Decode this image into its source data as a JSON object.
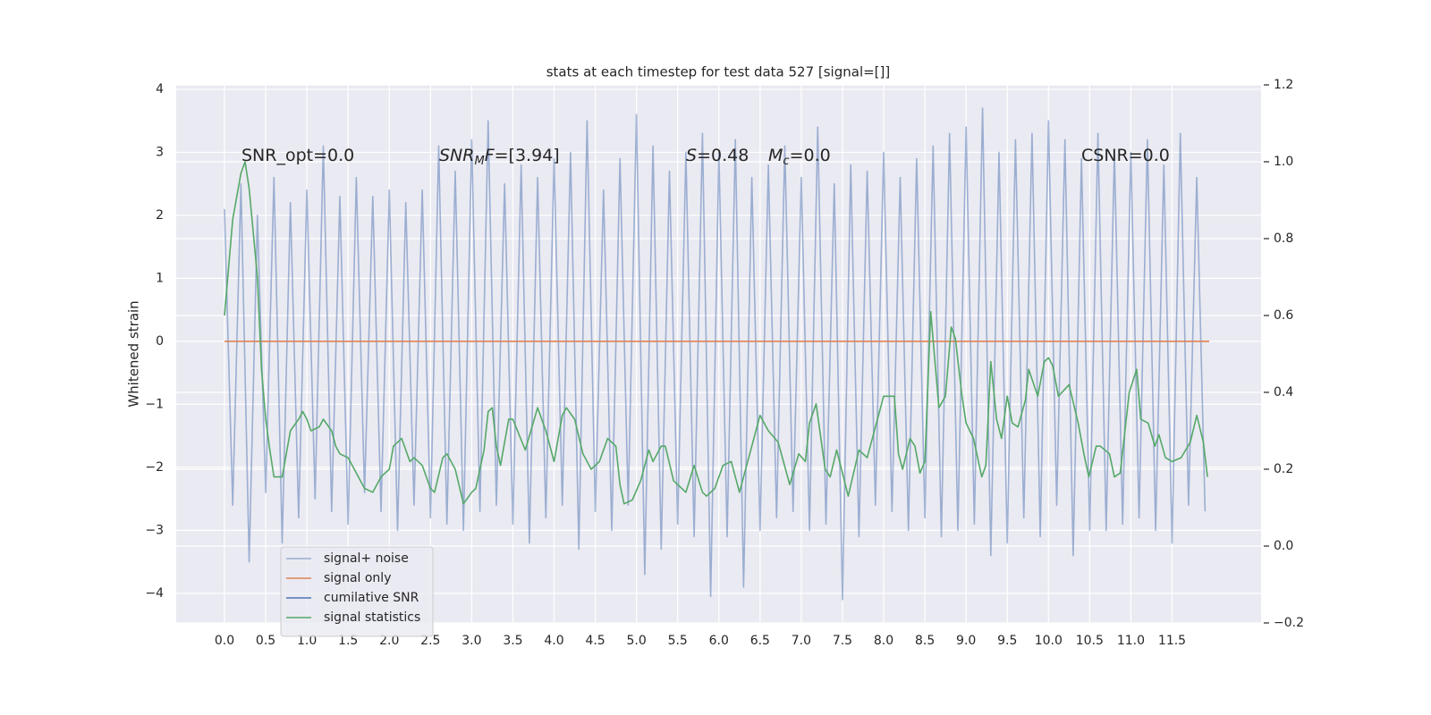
{
  "chart_data": {
    "type": "line",
    "title": "stats at each timestep for test data 527 [signal=[]]",
    "ylabel": "Whitened strain",
    "xlim": [
      -0.586,
      12.58
    ],
    "ylim": [
      -4.47,
      4.07
    ],
    "y2lim": [
      -0.2,
      1.2
    ],
    "xticks": [
      {
        "value": 0,
        "label": "0.0"
      },
      {
        "value": 0.5,
        "label": "0.5"
      },
      {
        "value": 1,
        "label": "1.0"
      },
      {
        "value": 1.5,
        "label": "1.5"
      },
      {
        "value": 2,
        "label": "2.0"
      },
      {
        "value": 2.5,
        "label": "2.5"
      },
      {
        "value": 3,
        "label": "3.0"
      },
      {
        "value": 3.5,
        "label": "3.5"
      },
      {
        "value": 4,
        "label": "4.0"
      },
      {
        "value": 4.5,
        "label": "4.5"
      },
      {
        "value": 5,
        "label": "5.0"
      },
      {
        "value": 5.5,
        "label": "5.5"
      },
      {
        "value": 6,
        "label": "6.0"
      },
      {
        "value": 6.5,
        "label": "6.5"
      },
      {
        "value": 7,
        "label": "7.0"
      },
      {
        "value": 7.5,
        "label": "7.5"
      },
      {
        "value": 8,
        "label": "8.0"
      },
      {
        "value": 8.5,
        "label": "8.5"
      },
      {
        "value": 9,
        "label": "9.0"
      },
      {
        "value": 9.5,
        "label": "9.5"
      },
      {
        "value": 10,
        "label": "10.0"
      },
      {
        "value": 10.5,
        "label": "10.5"
      },
      {
        "value": 11,
        "label": "11.0"
      },
      {
        "value": 11.5,
        "label": "11.5"
      }
    ],
    "yticks": [
      {
        "value": -4,
        "label": "−4"
      },
      {
        "value": -3,
        "label": "−3"
      },
      {
        "value": -2,
        "label": "−2"
      },
      {
        "value": -1,
        "label": "−1"
      },
      0,
      1,
      2,
      3,
      4
    ],
    "y2ticks": [
      {
        "value": -0.2,
        "label": "−0.2"
      },
      {
        "value": 0,
        "label": "0.0"
      },
      0.2,
      0.4,
      0.6,
      0.8,
      {
        "value": 1,
        "label": "1.0"
      },
      1.2
    ],
    "grid": true,
    "legend": "lower left",
    "annotations": [
      {
        "parts": [
          {
            "text": "SNR_opt=0.0"
          }
        ]
      },
      {
        "parts": [
          {
            "text": "SNR",
            "italic": true
          },
          {
            "text": "M",
            "italic": true,
            "sub": true
          },
          {
            "text": "F",
            "italic": true
          },
          {
            "text": "=[3.94]"
          }
        ]
      },
      {
        "parts": [
          {
            "text": "S",
            "italic": true
          },
          {
            "text": "=0.48"
          }
        ]
      },
      {
        "parts": [
          {
            "text": "M",
            "italic": true
          },
          {
            "text": "c",
            "italic": true,
            "sub": true
          },
          {
            "text": "=0.0"
          }
        ]
      },
      {
        "parts": [
          {
            "text": "CSNR=0.0"
          }
        ]
      }
    ],
    "series": [
      {
        "name": "signal+ noise",
        "color": "#4c72b0",
        "opacity": 0.5,
        "axis": "y",
        "x": [
          0,
          0.1,
          0.2,
          0.3,
          0.4,
          0.5,
          0.6,
          0.7,
          0.8,
          0.9,
          1,
          1.1,
          1.2,
          1.3,
          1.4,
          1.5,
          1.6,
          1.7,
          1.8,
          1.9,
          2,
          2.1,
          2.2,
          2.3,
          2.4,
          2.5,
          2.6,
          2.7,
          2.8,
          2.9,
          3,
          3.1,
          3.2,
          3.3,
          3.4,
          3.5,
          3.6,
          3.7,
          3.8,
          3.9,
          4,
          4.1,
          4.2,
          4.3,
          4.4,
          4.5,
          4.6,
          4.7,
          4.8,
          4.9,
          5,
          5.1,
          5.2,
          5.3,
          5.4,
          5.5,
          5.6,
          5.7,
          5.8,
          5.9,
          6,
          6.1,
          6.2,
          6.3,
          6.4,
          6.5,
          6.6,
          6.7,
          6.8,
          6.9,
          7,
          7.1,
          7.2,
          7.3,
          7.4,
          7.5,
          7.6,
          7.7,
          7.8,
          7.9,
          8,
          8.1,
          8.2,
          8.3,
          8.4,
          8.5,
          8.6,
          8.7,
          8.8,
          8.9,
          9,
          9.1,
          9.2,
          9.3,
          9.4,
          9.5,
          9.6,
          9.7,
          9.8,
          9.9,
          10,
          10.1,
          10.2,
          10.3,
          10.4,
          10.5,
          10.6,
          10.7,
          10.8,
          10.9,
          11,
          11.1,
          11.2,
          11.3,
          11.4,
          11.5,
          11.6,
          11.7,
          11.8,
          11.9
        ],
        "values": [
          2.1,
          -2.6,
          2.5,
          -3.5,
          2.0,
          -2.4,
          2.6,
          -3.2,
          2.2,
          -2.8,
          2.4,
          -2.5,
          3.1,
          -2.7,
          2.3,
          -2.9,
          2.6,
          -2.4,
          2.3,
          -2.7,
          2.4,
          -3.0,
          2.2,
          -2.6,
          2.4,
          -2.8,
          3.1,
          -2.9,
          2.7,
          -3.0,
          3.2,
          -2.7,
          3.5,
          -2.6,
          2.5,
          -2.9,
          2.8,
          -3.2,
          2.6,
          -2.8,
          2.9,
          -2.6,
          3.0,
          -3.3,
          3.5,
          -2.7,
          2.4,
          -3.0,
          2.9,
          -2.6,
          3.6,
          -3.7,
          3.1,
          -3.3,
          2.7,
          -2.9,
          3.0,
          -3.1,
          3.3,
          -4.05,
          3.0,
          -3.1,
          3.2,
          -3.9,
          2.6,
          -3.0,
          2.8,
          -2.8,
          3.1,
          -2.7,
          2.6,
          -3.0,
          3.4,
          -2.9,
          2.5,
          -4.1,
          2.8,
          -3.1,
          2.7,
          -2.6,
          3.0,
          -2.7,
          2.6,
          -3.0,
          2.9,
          -2.8,
          3.1,
          -3.1,
          3.3,
          -3.0,
          3.4,
          -2.9,
          3.7,
          -3.4,
          3.0,
          -3.2,
          3.2,
          -2.8,
          3.3,
          -3.1,
          3.5,
          -2.6,
          3.2,
          -3.4,
          2.9,
          -3.0,
          3.3,
          -3.0,
          3.0,
          -2.9,
          3.0,
          -2.8,
          3.2,
          -3.0,
          2.8,
          -3.2,
          3.3,
          -2.6,
          2.6,
          -2.7
        ]
      },
      {
        "name": "signal only",
        "color": "#dd8452",
        "axis": "y",
        "x": [
          0,
          11.95
        ],
        "values": [
          0,
          0
        ]
      },
      {
        "name": "cumilative SNR",
        "color": "#4c72b0",
        "axis": "y",
        "x": [],
        "values": []
      },
      {
        "name": "signal statistics",
        "color": "#55a868",
        "axis": "y2",
        "x": [
          0,
          0.1,
          0.2,
          0.25,
          0.3,
          0.4,
          0.45,
          0.5,
          0.55,
          0.6,
          0.7,
          0.8,
          0.9,
          0.95,
          1.0,
          1.05,
          1.15,
          1.2,
          1.3,
          1.35,
          1.4,
          1.5,
          1.6,
          1.7,
          1.8,
          1.9,
          2.0,
          2.05,
          2.15,
          2.25,
          2.3,
          2.4,
          2.5,
          2.55,
          2.65,
          2.7,
          2.8,
          2.9,
          3.0,
          3.05,
          3.15,
          3.2,
          3.25,
          3.3,
          3.35,
          3.45,
          3.5,
          3.65,
          3.8,
          3.9,
          4.0,
          4.1,
          4.15,
          4.25,
          4.35,
          4.45,
          4.55,
          4.65,
          4.75,
          4.8,
          4.85,
          4.95,
          5.05,
          5.15,
          5.2,
          5.3,
          5.35,
          5.45,
          5.5,
          5.6,
          5.7,
          5.8,
          5.85,
          5.95,
          6.05,
          6.15,
          6.25,
          6.35,
          6.5,
          6.6,
          6.72,
          6.86,
          6.97,
          7.05,
          7.1,
          7.18,
          7.29,
          7.35,
          7.43,
          7.57,
          7.7,
          7.8,
          7.9,
          8.0,
          8.13,
          8.18,
          8.23,
          8.32,
          8.38,
          8.44,
          8.5,
          8.57,
          8.67,
          8.75,
          8.82,
          8.87,
          8.95,
          9.0,
          9.09,
          9.19,
          9.24,
          9.3,
          9.37,
          9.43,
          9.5,
          9.56,
          9.63,
          9.72,
          9.76,
          9.87,
          9.95,
          10.0,
          10.05,
          10.12,
          10.25,
          10.36,
          10.43,
          10.49,
          10.58,
          10.63,
          10.74,
          10.8,
          10.87,
          10.98,
          11.07,
          11.12,
          11.21,
          11.29,
          11.34,
          11.42,
          11.5,
          11.61,
          11.72,
          11.8,
          11.88,
          11.93
        ],
        "values": [
          0.6,
          0.85,
          0.97,
          1.0,
          0.93,
          0.7,
          0.46,
          0.33,
          0.25,
          0.18,
          0.18,
          0.3,
          0.33,
          0.35,
          0.33,
          0.3,
          0.31,
          0.33,
          0.3,
          0.26,
          0.24,
          0.23,
          0.19,
          0.15,
          0.14,
          0.18,
          0.2,
          0.26,
          0.28,
          0.22,
          0.23,
          0.21,
          0.15,
          0.14,
          0.23,
          0.24,
          0.2,
          0.11,
          0.14,
          0.15,
          0.25,
          0.35,
          0.36,
          0.26,
          0.21,
          0.33,
          0.33,
          0.25,
          0.36,
          0.3,
          0.22,
          0.34,
          0.36,
          0.33,
          0.24,
          0.2,
          0.22,
          0.28,
          0.26,
          0.16,
          0.11,
          0.12,
          0.17,
          0.25,
          0.22,
          0.26,
          0.26,
          0.17,
          0.16,
          0.14,
          0.21,
          0.14,
          0.13,
          0.15,
          0.21,
          0.22,
          0.14,
          0.22,
          0.34,
          0.3,
          0.27,
          0.16,
          0.24,
          0.22,
          0.32,
          0.37,
          0.2,
          0.18,
          0.25,
          0.13,
          0.25,
          0.23,
          0.31,
          0.39,
          0.39,
          0.24,
          0.2,
          0.28,
          0.26,
          0.19,
          0.22,
          0.61,
          0.36,
          0.39,
          0.57,
          0.54,
          0.39,
          0.32,
          0.28,
          0.18,
          0.21,
          0.48,
          0.33,
          0.28,
          0.39,
          0.32,
          0.31,
          0.38,
          0.46,
          0.39,
          0.48,
          0.49,
          0.47,
          0.39,
          0.42,
          0.32,
          0.24,
          0.18,
          0.26,
          0.26,
          0.24,
          0.18,
          0.19,
          0.4,
          0.46,
          0.33,
          0.32,
          0.26,
          0.29,
          0.23,
          0.22,
          0.23,
          0.27,
          0.34,
          0.27,
          0.18
        ]
      }
    ]
  }
}
